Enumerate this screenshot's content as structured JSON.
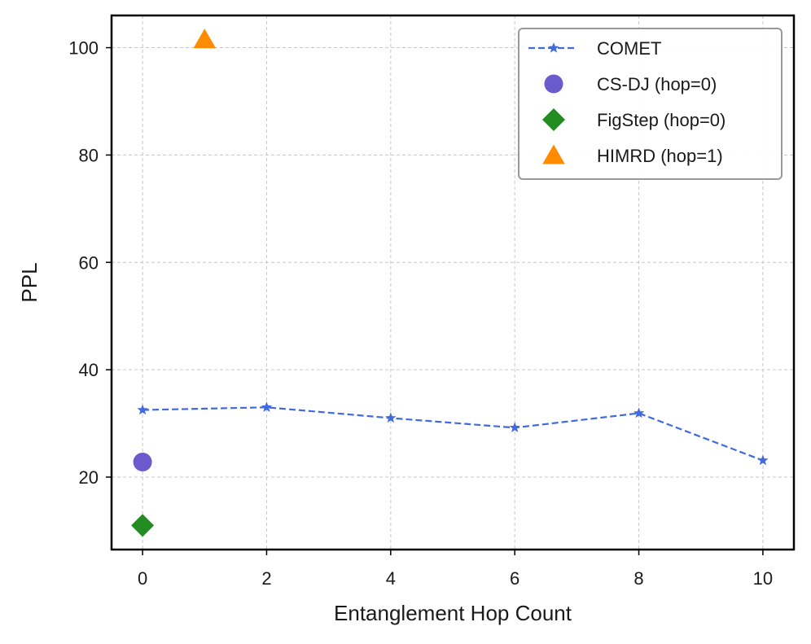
{
  "chart_data": {
    "type": "line",
    "xlabel": "Entanglement Hop Count",
    "ylabel": "PPL",
    "xlim": [
      -0.5,
      10.5
    ],
    "ylim": [
      6.5,
      106
    ],
    "xticks": [
      0,
      2,
      4,
      6,
      8,
      10
    ],
    "yticks": [
      20,
      40,
      60,
      80,
      100
    ],
    "grid": true,
    "legend_position": "top-right",
    "series": [
      {
        "name": "COMET",
        "kind": "line",
        "marker": "star",
        "line_style": "dashed",
        "color": "#4169E1",
        "x": [
          0,
          2,
          4,
          6,
          8,
          10
        ],
        "y": [
          32.5,
          33.0,
          31.0,
          29.2,
          31.9,
          23.1
        ]
      },
      {
        "name": "CS-DJ (hop=0)",
        "kind": "scatter",
        "marker": "circle",
        "color": "#6A5ACD",
        "x": [
          0
        ],
        "y": [
          22.8
        ]
      },
      {
        "name": "FigStep (hop=0)",
        "kind": "scatter",
        "marker": "diamond",
        "color": "#228B22",
        "x": [
          0
        ],
        "y": [
          11.0
        ]
      },
      {
        "name": "HIMRD (hop=1)",
        "kind": "scatter",
        "marker": "triangle",
        "color": "#FF8C00",
        "x": [
          1
        ],
        "y": [
          101.5
        ]
      }
    ]
  }
}
